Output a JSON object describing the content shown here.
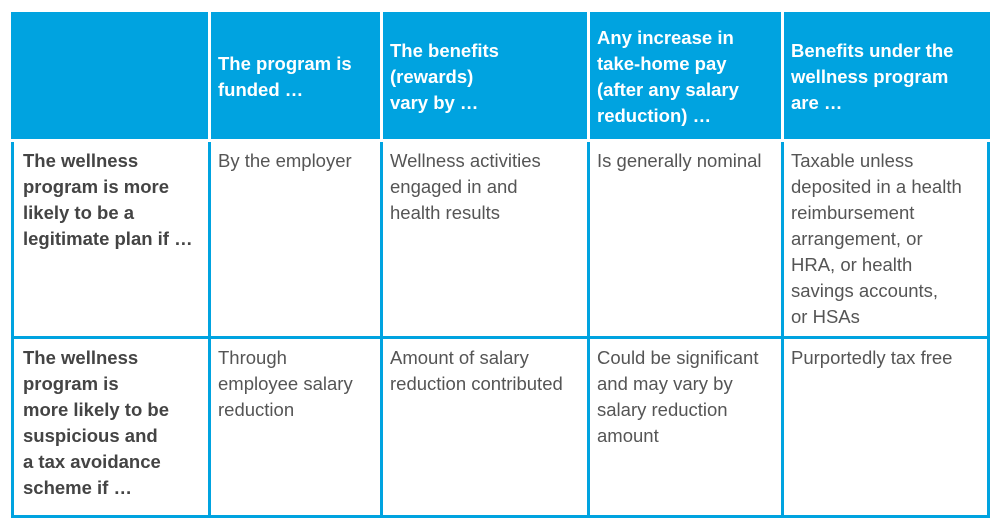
{
  "table": {
    "header": {
      "corner": "",
      "columns": [
        "The program is\nfunded …",
        "The benefits\n(rewards)\nvary by …",
        "Any increase in\ntake-home pay\n(after any salary\nreduction) …",
        "Benefits under the\nwellness program\nare …"
      ]
    },
    "rows": [
      {
        "label": "The wellness\nprogram is more\nlikely to be a\nlegitimate plan if …",
        "cells": [
          "By the employer",
          "Wellness activities\nengaged in and\nhealth results",
          "Is generally nominal",
          "Taxable unless\ndeposited in a health\nreimbursement\narrangement, or\nHRA, or health\nsavings accounts,\nor HSAs"
        ]
      },
      {
        "label": "The wellness\nprogram is\nmore likely to be\nsuspicious and\na tax avoidance\nscheme if …",
        "cells": [
          "Through\nemployee salary\nreduction",
          "Amount of salary\nreduction contributed",
          "Could be significant\nand may vary by\nsalary reduction\namount",
          "Purportedly tax free"
        ]
      }
    ]
  }
}
